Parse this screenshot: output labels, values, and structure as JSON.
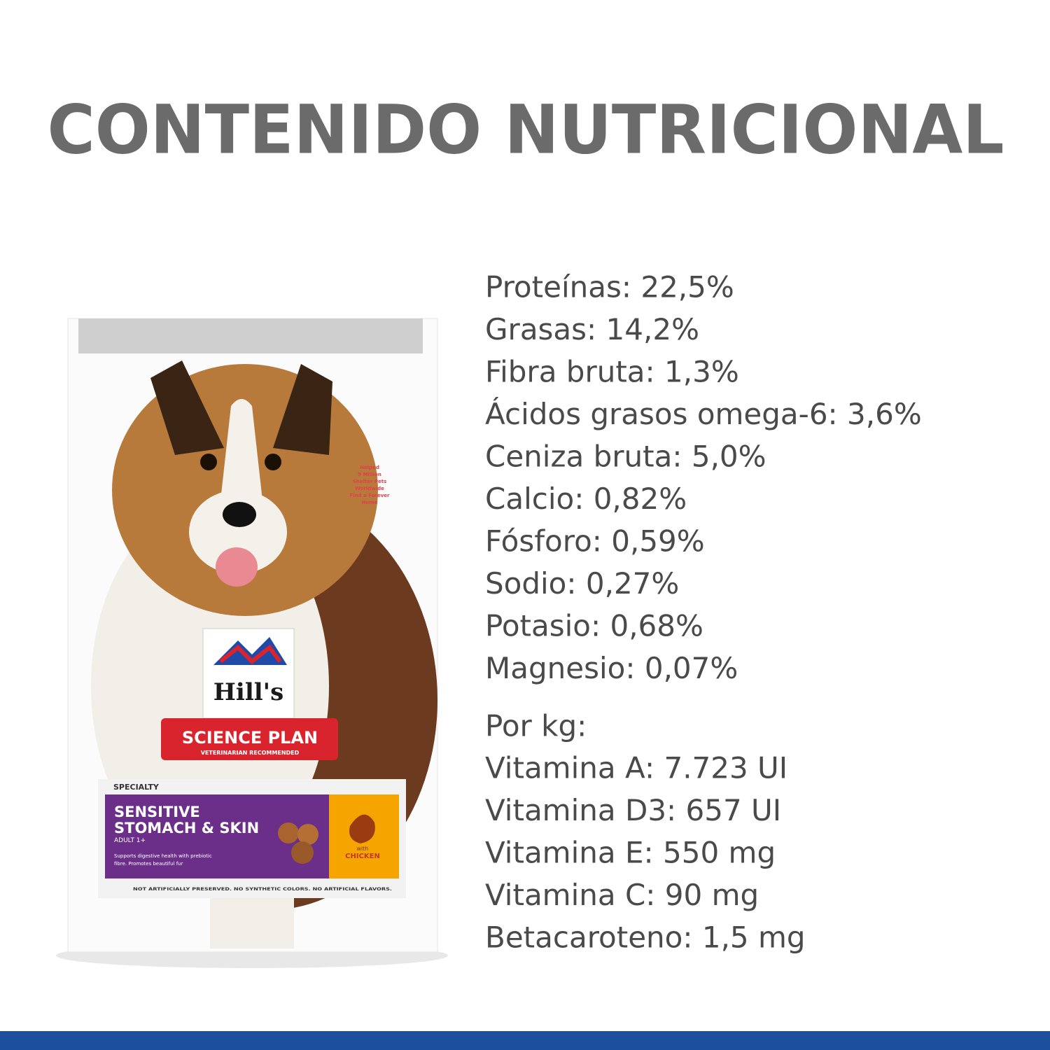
{
  "title": "CONTENIDO NUTRICIONAL",
  "nutrients": [
    "Proteínas: 22,5%",
    "Grasas: 14,2%",
    "Fibra bruta: 1,3%",
    "Ácidos grasos omega-6: 3,6%",
    "Ceniza bruta: 5,0%",
    "Calcio: 0,82%",
    "Fósforo: 0,59%",
    "Sodio: 0,27%",
    "Potasio: 0,68%",
    "Magnesio: 0,07%"
  ],
  "per_kg_heading": "Por kg:",
  "per_kg": [
    "Vitamina A: 7.723 UI",
    "Vitamina D3: 657 UI",
    "Vitamina E: 550 mg",
    "Vitamina C: 90 mg",
    "Betacaroteno: 1,5 mg"
  ],
  "package": {
    "brand": "Hill's",
    "line": "SCIENCE PLAN",
    "tagline": "VETERINARIAN RECOMMENDED",
    "category": "SPECIALTY",
    "product": [
      "SENSITIVE",
      "STOMACH & SKIN"
    ],
    "age": "ADULT 1+",
    "claim": [
      "Supports digestive health with prebiotic",
      "fibre. Promotes beautiful fur"
    ],
    "flavor": [
      "with",
      "CHICKEN"
    ],
    "footer": "NOT ARTIFICIALLY PRESERVED. NO SYNTHETIC COLORS. NO ARTIFICIAL FLAVORS.",
    "shelter": [
      "Helped",
      "9 Million",
      "Shelter Pets",
      "Worldwide",
      "Find a Forever",
      "Home"
    ]
  }
}
